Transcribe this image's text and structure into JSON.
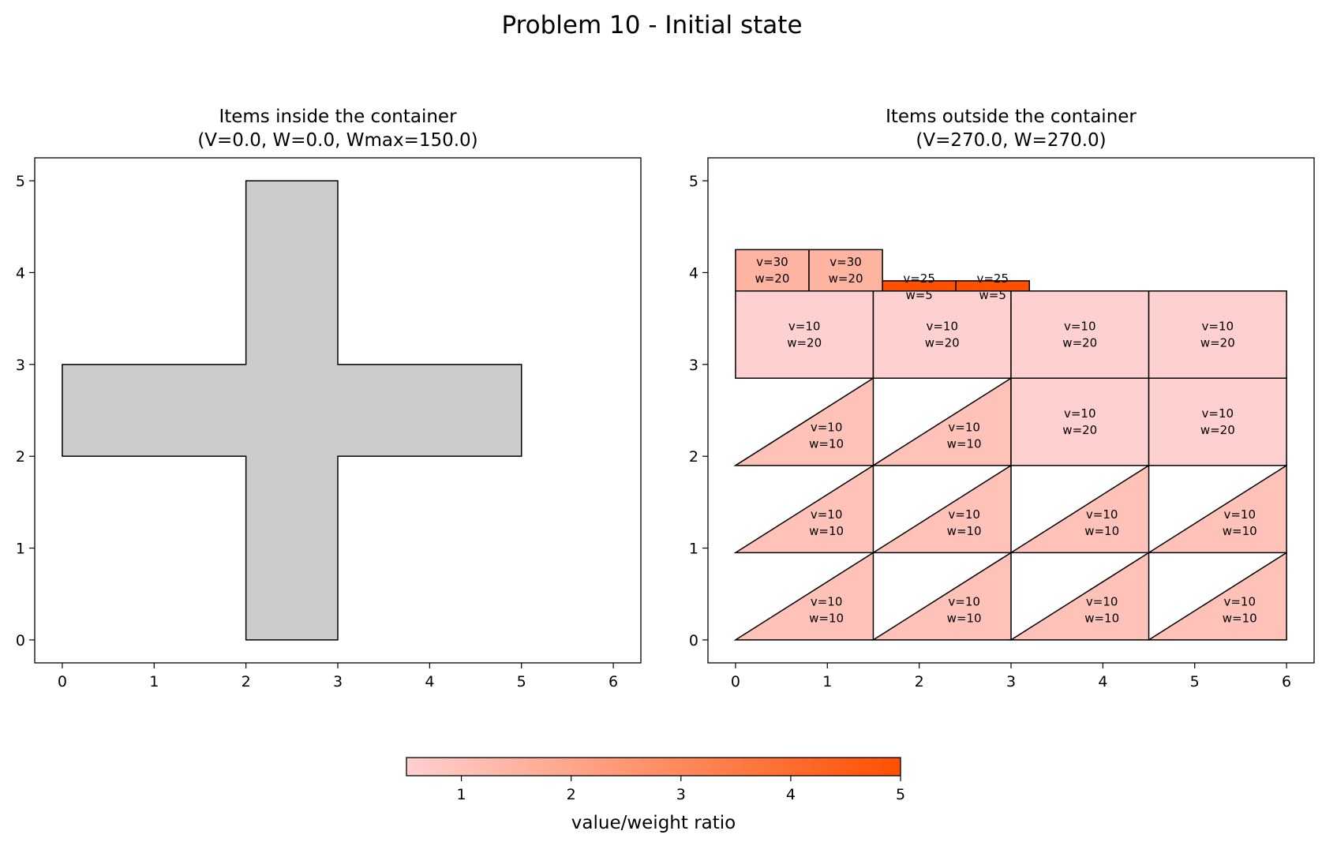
{
  "figure": {
    "title": "Problem 10 - Initial state"
  },
  "colors": {
    "container_fill": "#cccccc",
    "outline": "#000000",
    "cmap_low": "#ffd0d0",
    "cmap_high": "#ff5000"
  },
  "chart_data": [
    {
      "type": "polygon",
      "title_line1": "Items inside the container",
      "title_line2": "(V=0.0, W=0.0, Wmax=150.0)",
      "xlim": [
        -0.3,
        6.3
      ],
      "ylim": [
        -0.25,
        5.25
      ],
      "xticks": [
        "0",
        "1",
        "2",
        "3",
        "4",
        "5",
        "6"
      ],
      "yticks": [
        "0",
        "1",
        "2",
        "3",
        "4",
        "5"
      ],
      "container": {
        "points": [
          [
            2,
            0
          ],
          [
            3,
            0
          ],
          [
            3,
            2
          ],
          [
            5,
            2
          ],
          [
            5,
            3
          ],
          [
            3,
            3
          ],
          [
            3,
            5
          ],
          [
            2,
            5
          ],
          [
            2,
            3
          ],
          [
            0,
            3
          ],
          [
            0,
            2
          ],
          [
            2,
            2
          ]
        ]
      }
    },
    {
      "type": "polygon",
      "title_line1": "Items outside the container",
      "title_line2": "(V=270.0, W=270.0)",
      "xlim": [
        -0.3,
        6.3
      ],
      "ylim": [
        -0.25,
        5.25
      ],
      "xticks": [
        "0",
        "1",
        "2",
        "3",
        "4",
        "5",
        "6"
      ],
      "yticks": [
        "0",
        "1",
        "2",
        "3",
        "4",
        "5"
      ],
      "items": [
        {
          "v": 10,
          "w": 10,
          "ratio": 1.0,
          "points": [
            [
              0,
              0
            ],
            [
              1.5,
              0.95
            ],
            [
              1.5,
              0
            ]
          ],
          "lines": [
            "v=10",
            "w=10"
          ],
          "label_at": [
            0.99,
            0.33
          ]
        },
        {
          "v": 10,
          "w": 10,
          "ratio": 1.0,
          "points": [
            [
              1.5,
              0
            ],
            [
              3,
              0.95
            ],
            [
              3,
              0
            ]
          ],
          "lines": [
            "v=10",
            "w=10"
          ],
          "label_at": [
            2.49,
            0.33
          ]
        },
        {
          "v": 10,
          "w": 10,
          "ratio": 1.0,
          "points": [
            [
              3,
              0
            ],
            [
              4.5,
              0.95
            ],
            [
              4.5,
              0
            ]
          ],
          "lines": [
            "v=10",
            "w=10"
          ],
          "label_at": [
            3.99,
            0.33
          ]
        },
        {
          "v": 10,
          "w": 10,
          "ratio": 1.0,
          "points": [
            [
              4.5,
              0
            ],
            [
              6,
              0.95
            ],
            [
              6,
              0
            ]
          ],
          "lines": [
            "v=10",
            "w=10"
          ],
          "label_at": [
            5.49,
            0.33
          ]
        },
        {
          "v": 10,
          "w": 10,
          "ratio": 1.0,
          "points": [
            [
              0,
              0.95
            ],
            [
              1.5,
              1.9
            ],
            [
              1.5,
              0.95
            ]
          ],
          "lines": [
            "v=10",
            "w=10"
          ],
          "label_at": [
            0.99,
            1.28
          ]
        },
        {
          "v": 10,
          "w": 10,
          "ratio": 1.0,
          "points": [
            [
              1.5,
              0.95
            ],
            [
              3,
              1.9
            ],
            [
              3,
              0.95
            ]
          ],
          "lines": [
            "v=10",
            "w=10"
          ],
          "label_at": [
            2.49,
            1.28
          ]
        },
        {
          "v": 10,
          "w": 10,
          "ratio": 1.0,
          "points": [
            [
              3,
              0.95
            ],
            [
              4.5,
              1.9
            ],
            [
              4.5,
              0.95
            ]
          ],
          "lines": [
            "v=10",
            "w=10"
          ],
          "label_at": [
            3.99,
            1.28
          ]
        },
        {
          "v": 10,
          "w": 10,
          "ratio": 1.0,
          "points": [
            [
              4.5,
              0.95
            ],
            [
              6,
              1.9
            ],
            [
              6,
              0.95
            ]
          ],
          "lines": [
            "v=10",
            "w=10"
          ],
          "label_at": [
            5.49,
            1.28
          ]
        },
        {
          "v": 10,
          "w": 10,
          "ratio": 1.0,
          "points": [
            [
              0,
              1.9
            ],
            [
              1.5,
              2.85
            ],
            [
              1.5,
              1.9
            ]
          ],
          "lines": [
            "v=10",
            "w=10"
          ],
          "label_at": [
            0.99,
            2.23
          ]
        },
        {
          "v": 10,
          "w": 10,
          "ratio": 1.0,
          "points": [
            [
              1.5,
              1.9
            ],
            [
              3,
              2.85
            ],
            [
              3,
              1.9
            ]
          ],
          "lines": [
            "v=10",
            "w=10"
          ],
          "label_at": [
            2.49,
            2.23
          ]
        },
        {
          "v": 10,
          "w": 20,
          "ratio": 0.5,
          "points": [
            [
              3,
              1.9
            ],
            [
              4.5,
              1.9
            ],
            [
              4.5,
              2.85
            ],
            [
              3,
              2.85
            ]
          ],
          "lines": [
            "v=10",
            "w=20"
          ],
          "label_at": [
            3.75,
            2.38
          ]
        },
        {
          "v": 10,
          "w": 20,
          "ratio": 0.5,
          "points": [
            [
              4.5,
              1.9
            ],
            [
              6,
              1.9
            ],
            [
              6,
              2.85
            ],
            [
              4.5,
              2.85
            ]
          ],
          "lines": [
            "v=10",
            "w=20"
          ],
          "label_at": [
            5.25,
            2.38
          ]
        },
        {
          "v": 10,
          "w": 20,
          "ratio": 0.5,
          "points": [
            [
              0,
              2.85
            ],
            [
              1.5,
              2.85
            ],
            [
              1.5,
              3.8
            ],
            [
              0,
              3.8
            ]
          ],
          "lines": [
            "v=10",
            "w=20"
          ],
          "label_at": [
            0.75,
            3.33
          ]
        },
        {
          "v": 10,
          "w": 20,
          "ratio": 0.5,
          "points": [
            [
              1.5,
              2.85
            ],
            [
              3,
              2.85
            ],
            [
              3,
              3.8
            ],
            [
              1.5,
              3.8
            ]
          ],
          "lines": [
            "v=10",
            "w=20"
          ],
          "label_at": [
            2.25,
            3.33
          ]
        },
        {
          "v": 10,
          "w": 20,
          "ratio": 0.5,
          "points": [
            [
              3,
              2.85
            ],
            [
              4.5,
              2.85
            ],
            [
              4.5,
              3.8
            ],
            [
              3,
              3.8
            ]
          ],
          "lines": [
            "v=10",
            "w=20"
          ],
          "label_at": [
            3.75,
            3.33
          ]
        },
        {
          "v": 10,
          "w": 20,
          "ratio": 0.5,
          "points": [
            [
              4.5,
              2.85
            ],
            [
              6,
              2.85
            ],
            [
              6,
              3.8
            ],
            [
              4.5,
              3.8
            ]
          ],
          "lines": [
            "v=10",
            "w=20"
          ],
          "label_at": [
            5.25,
            3.33
          ]
        },
        {
          "v": 25,
          "w": 5,
          "ratio": 5.0,
          "points": [
            [
              1.6,
              3.8
            ],
            [
              2.4,
              3.8
            ],
            [
              2.4,
              3.91
            ],
            [
              1.6,
              3.91
            ]
          ],
          "lines": [
            "v=25",
            "w=5"
          ],
          "label_at": [
            2.0,
            3.85
          ]
        },
        {
          "v": 25,
          "w": 5,
          "ratio": 5.0,
          "points": [
            [
              2.4,
              3.8
            ],
            [
              3.2,
              3.8
            ],
            [
              3.2,
              3.91
            ],
            [
              2.4,
              3.91
            ]
          ],
          "lines": [
            "v=25",
            "w=5"
          ],
          "label_at": [
            2.8,
            3.85
          ]
        },
        {
          "v": 30,
          "w": 20,
          "ratio": 1.5,
          "points": [
            [
              0,
              3.8
            ],
            [
              0.8,
              3.8
            ],
            [
              0.8,
              4.25
            ],
            [
              0,
              4.25
            ]
          ],
          "lines": [
            "v=30",
            "w=20"
          ],
          "label_at": [
            0.4,
            4.03
          ]
        },
        {
          "v": 30,
          "w": 20,
          "ratio": 1.5,
          "points": [
            [
              0.8,
              3.8
            ],
            [
              1.6,
              3.8
            ],
            [
              1.6,
              4.25
            ],
            [
              0.8,
              4.25
            ]
          ],
          "lines": [
            "v=30",
            "w=20"
          ],
          "label_at": [
            1.2,
            4.03
          ]
        }
      ]
    }
  ],
  "colorbar": {
    "label": "value/weight ratio",
    "range": [
      0.5,
      5.0
    ],
    "ticks": [
      {
        "value": 1,
        "label": "1"
      },
      {
        "value": 2,
        "label": "2"
      },
      {
        "value": 3,
        "label": "3"
      },
      {
        "value": 4,
        "label": "4"
      },
      {
        "value": 5,
        "label": "5"
      }
    ]
  }
}
